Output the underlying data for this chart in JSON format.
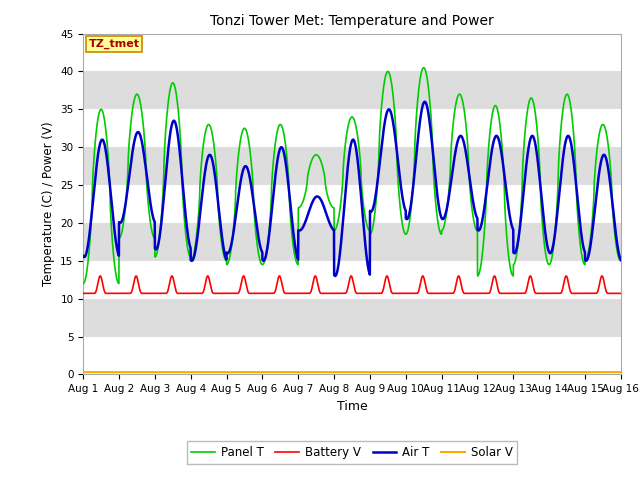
{
  "title": "Tonzi Tower Met: Temperature and Power",
  "xlabel": "Time",
  "ylabel": "Temperature (C) / Power (V)",
  "ylim": [
    0,
    45
  ],
  "xlim": [
    0,
    15
  ],
  "label_text": "TZ_tmet",
  "xtick_labels": [
    "Aug 1",
    "Aug 2",
    "Aug 3",
    "Aug 4",
    "Aug 5",
    "Aug 6",
    "Aug 7",
    "Aug 8",
    "Aug 9",
    "Aug 10",
    "Aug 11",
    "Aug 12",
    "Aug 13",
    "Aug 14",
    "Aug 15",
    "Aug 16"
  ],
  "ytick_values": [
    0,
    5,
    10,
    15,
    20,
    25,
    30,
    35,
    40,
    45
  ],
  "panel_T_color": "#00cc00",
  "battery_V_color": "#ff0000",
  "air_T_color": "#0000cc",
  "solar_V_color": "#ffaa00",
  "fig_bg_color": "#ffffff",
  "plot_bg_color": "#ffffff",
  "gray_band_color": "#dddddd",
  "panel_T_lw": 1.2,
  "battery_V_lw": 1.2,
  "air_T_lw": 1.8,
  "solar_V_lw": 1.5,
  "panel_T_daily_peaks": [
    35,
    37,
    38.5,
    33,
    32.5,
    33,
    29,
    34,
    40,
    40.5,
    37,
    35.5,
    36.5,
    37,
    33
  ],
  "panel_T_daily_troughs": [
    12,
    18,
    15.5,
    15,
    14.5,
    14.5,
    22,
    19,
    18.5,
    18.5,
    19,
    13,
    14.5,
    14.5,
    15
  ],
  "air_T_daily_peaks": [
    31,
    32,
    33.5,
    29,
    27.5,
    30,
    23.5,
    31,
    35,
    36,
    31.5,
    31.5,
    31.5,
    31.5,
    29
  ],
  "air_T_daily_troughs": [
    15.5,
    20,
    16.5,
    15,
    16,
    15,
    19,
    13,
    21.5,
    20.5,
    20.5,
    19,
    16,
    16,
    15
  ],
  "battery_base": 10.7,
  "battery_spike": 2.3,
  "solar_base": 0.3
}
